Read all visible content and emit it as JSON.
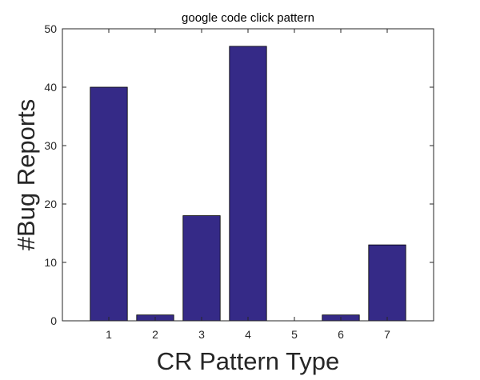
{
  "chart_data": {
    "type": "bar",
    "title": "google code click pattern",
    "xlabel": "CR Pattern Type",
    "ylabel": "#Bug Reports",
    "categories": [
      "1",
      "2",
      "3",
      "4",
      "5",
      "6",
      "7"
    ],
    "values": [
      40,
      1,
      18,
      47,
      0,
      1,
      13
    ],
    "ylim": [
      0,
      50
    ],
    "yticks": [
      0,
      10,
      20,
      30,
      40,
      50
    ],
    "grid": false,
    "bar_color": "#352a87"
  }
}
